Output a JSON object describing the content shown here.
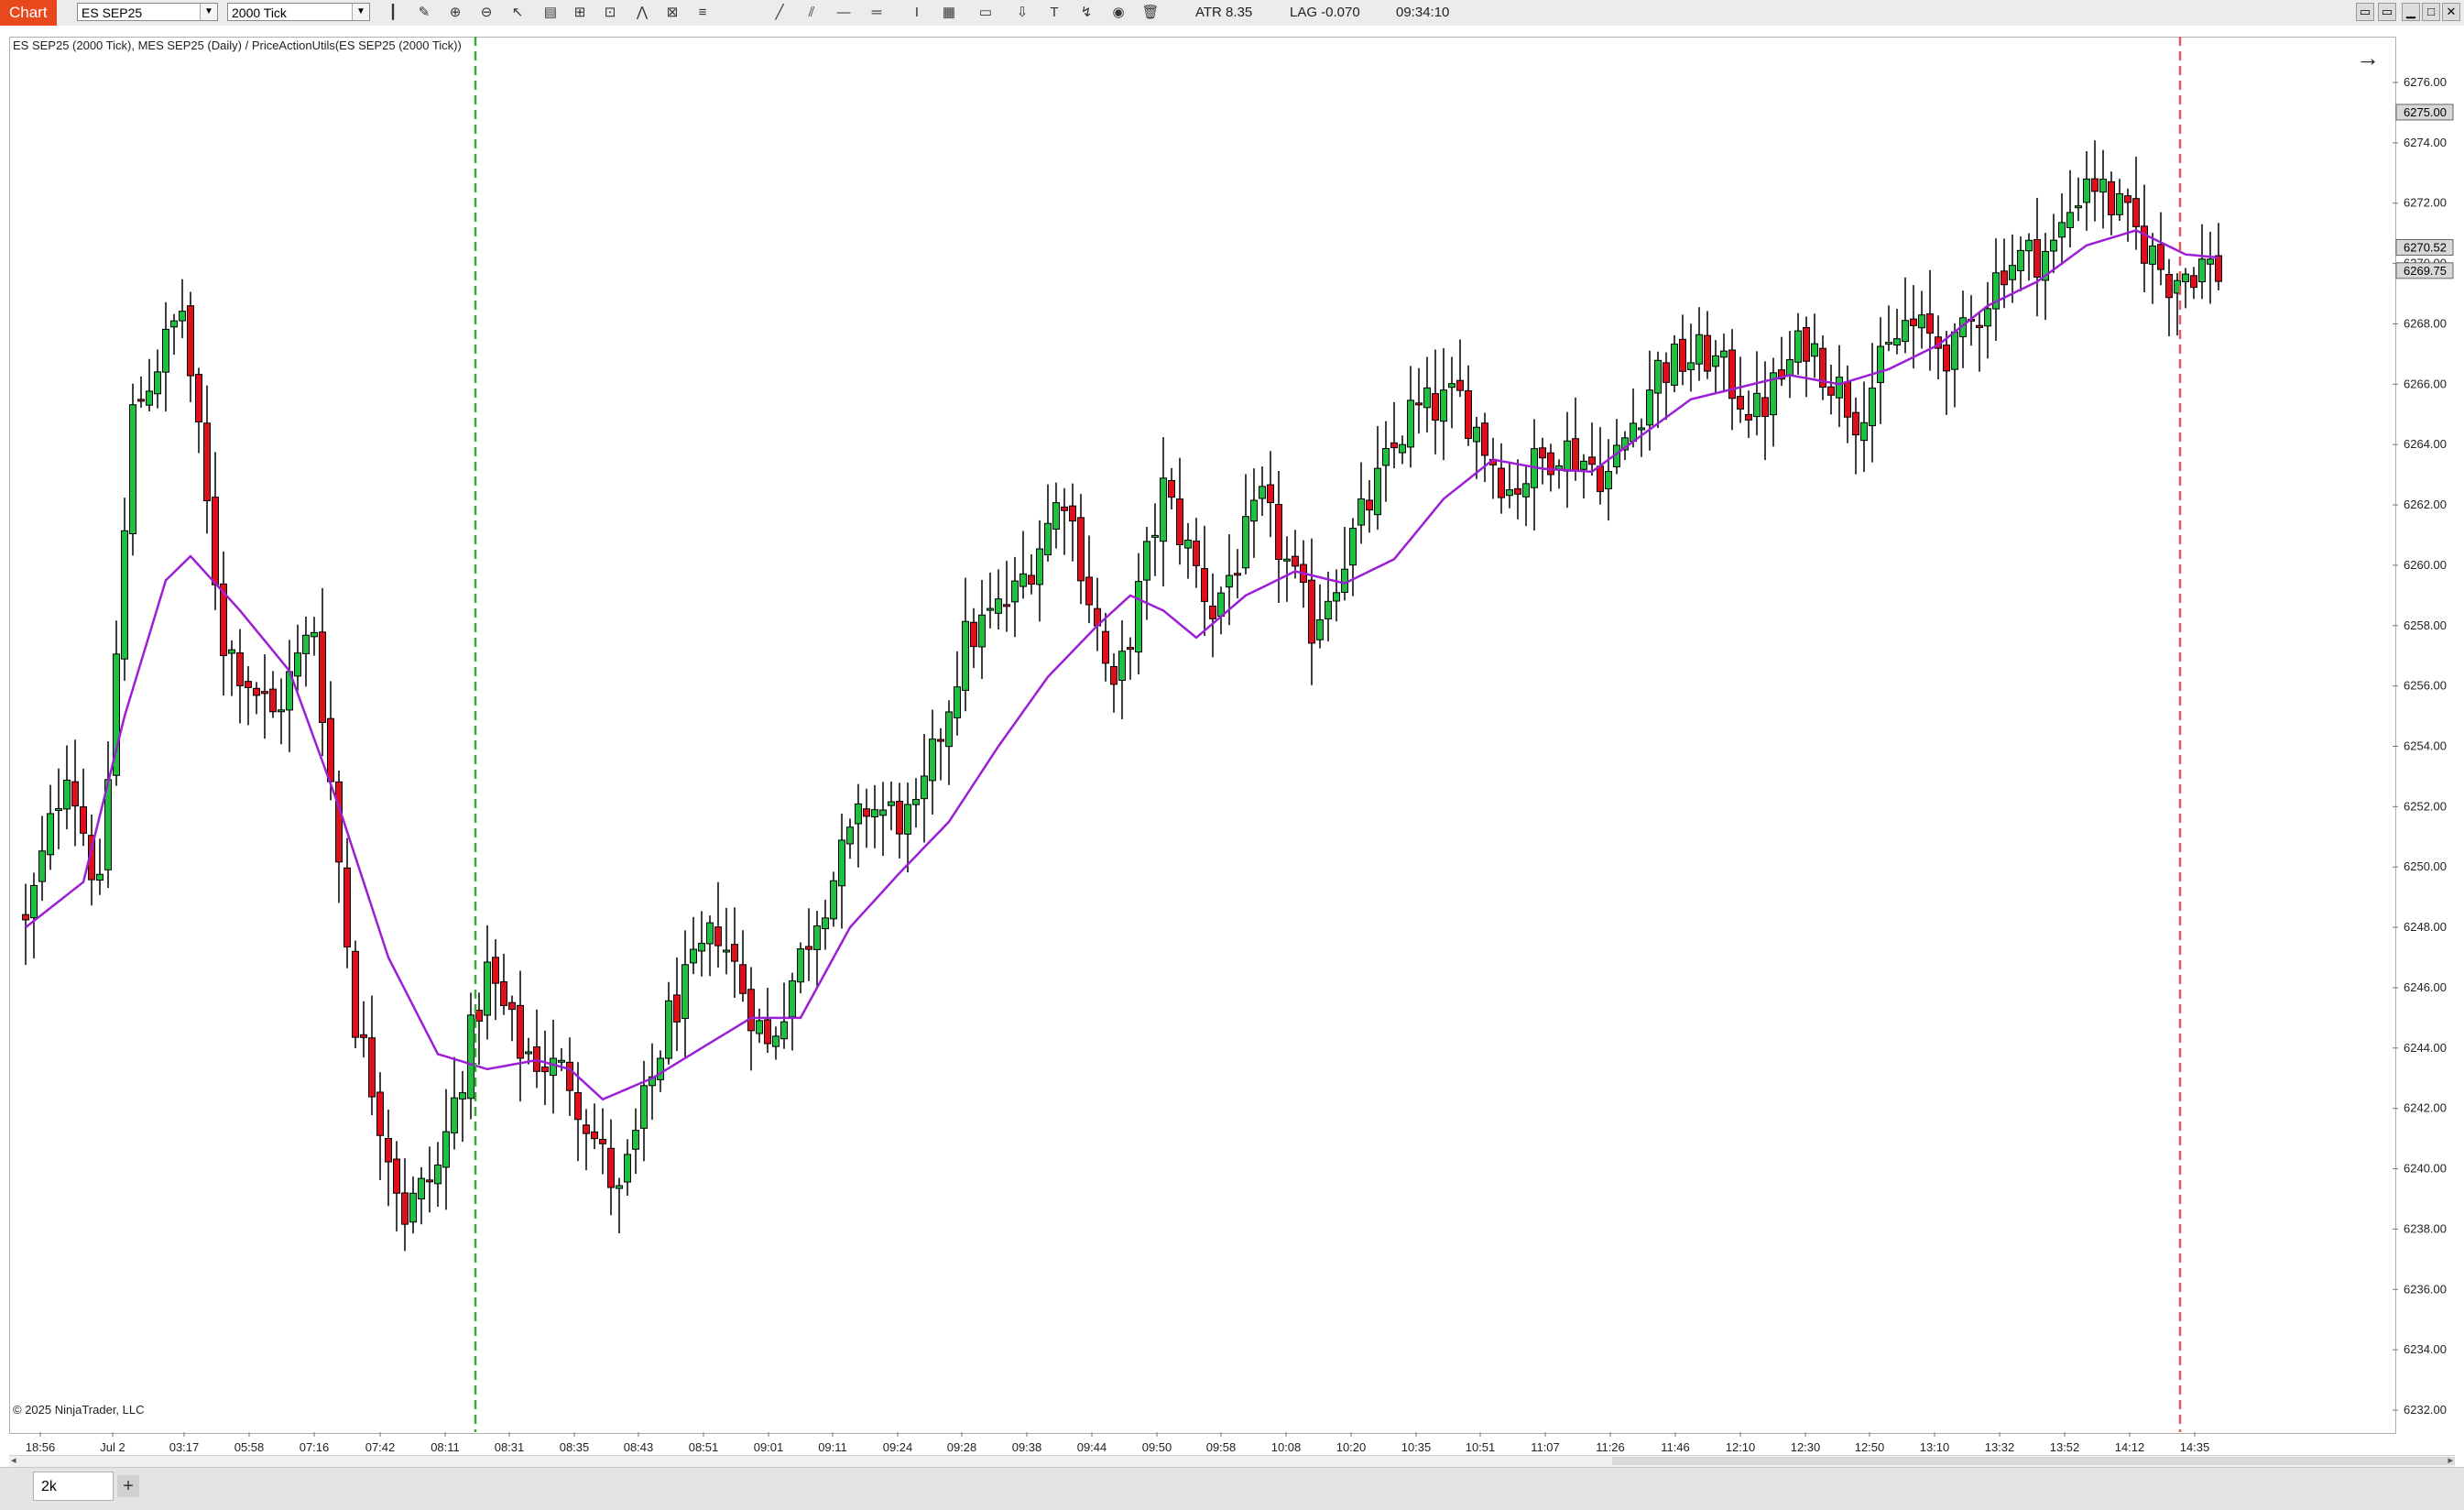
{
  "toolbar": {
    "chart_tab": "Chart",
    "instrument": "ES SEP25",
    "interval": "2000 Tick",
    "atr": "ATR 8.35",
    "lag": "LAG -0.070",
    "time": "09:34:10",
    "tool_icons": [
      "bar-style-icon",
      "pencil-icon",
      "zoom-in-icon",
      "zoom-out-icon",
      "cursor-icon",
      "properties-icon",
      "data-series-icon",
      "indicators-icon",
      "strategies-icon",
      "templates-icon",
      "list-icon",
      "line-icon",
      "ray-icon",
      "horizontal-line-icon",
      "extended-line-icon",
      "text-cursor-icon",
      "ruler-icon",
      "rectangle-icon",
      "arrow-down-icon",
      "text-icon",
      "magnet-icon",
      "eye-icon",
      "trash-icon"
    ]
  },
  "chart": {
    "label": "ES SEP25 (2000 Tick), MES SEP25 (Daily) / PriceActionUtils(ES SEP25 (2000 Tick))",
    "copyright": "© 2025 NinjaTrader, LLC",
    "colors": {
      "up": "#1fbf3f",
      "down": "#e0101a",
      "ma": "#9c1fd6",
      "session_start": "#3aa83a",
      "session_end": "#e85a5a"
    }
  },
  "chart_data": {
    "type": "candlestick",
    "instrument": "ES SEP25",
    "y_ticks": [
      "6276.00",
      "6274.00",
      "6272.00",
      "6270.00",
      "6268.00",
      "6266.00",
      "6264.00",
      "6262.00",
      "6260.00",
      "6258.00",
      "6256.00",
      "6254.00",
      "6252.00",
      "6250.00",
      "6248.00",
      "6246.00",
      "6244.00",
      "6242.00",
      "6240.00",
      "6238.00",
      "6236.00",
      "6234.00",
      "6232.00"
    ],
    "ylim": [
      6232,
      6277
    ],
    "x_ticks": [
      "18:56",
      "Jul 2",
      "03:17",
      "05:58",
      "07:16",
      "07:42",
      "08:11",
      "08:31",
      "08:35",
      "08:43",
      "08:51",
      "09:01",
      "09:11",
      "09:24",
      "09:28",
      "09:38",
      "09:44",
      "09:50",
      "09:58",
      "10:08",
      "10:20",
      "10:35",
      "10:51",
      "11:07",
      "11:26",
      "11:46",
      "12:10",
      "12:30",
      "12:50",
      "13:10",
      "13:32",
      "13:52",
      "14:12",
      "14:35"
    ],
    "price_flags": [
      {
        "label": "6275.00",
        "value": 6275.0
      },
      {
        "label": "6270.52",
        "value": 6270.52
      },
      {
        "label": "6269.75",
        "value": 6269.75
      }
    ],
    "close_anchors": [
      [
        0,
        6248.0
      ],
      [
        5,
        6253.5
      ],
      [
        9,
        6249.0
      ],
      [
        13,
        6265.0
      ],
      [
        19,
        6268.5
      ],
      [
        24,
        6257.5
      ],
      [
        30,
        6255.0
      ],
      [
        35,
        6258.0
      ],
      [
        40,
        6245.0
      ],
      [
        46,
        6238.5
      ],
      [
        50,
        6240.0
      ],
      [
        56,
        6246.5
      ],
      [
        60,
        6244.0
      ],
      [
        66,
        6243.0
      ],
      [
        72,
        6239.0
      ],
      [
        78,
        6245.0
      ],
      [
        84,
        6248.0
      ],
      [
        90,
        6244.0
      ],
      [
        96,
        6248.5
      ],
      [
        102,
        6252.0
      ],
      [
        108,
        6251.5
      ],
      [
        114,
        6257.5
      ],
      [
        120,
        6259.0
      ],
      [
        126,
        6262.5
      ],
      [
        132,
        6255.5
      ],
      [
        138,
        6262.5
      ],
      [
        144,
        6258.5
      ],
      [
        150,
        6262.0
      ],
      [
        156,
        6258.0
      ],
      [
        162,
        6261.5
      ],
      [
        168,
        6265.0
      ],
      [
        174,
        6265.5
      ],
      [
        180,
        6262.5
      ],
      [
        186,
        6264.0
      ],
      [
        192,
        6263.0
      ],
      [
        198,
        6266.5
      ],
      [
        204,
        6267.0
      ],
      [
        210,
        6265.0
      ],
      [
        216,
        6267.5
      ],
      [
        222,
        6265.0
      ],
      [
        228,
        6268.0
      ],
      [
        234,
        6267.0
      ],
      [
        240,
        6270.0
      ],
      [
        246,
        6270.5
      ],
      [
        250,
        6273.0
      ],
      [
        256,
        6271.0
      ],
      [
        260,
        6269.5
      ],
      [
        264,
        6270.0
      ],
      [
        266,
        6269.75
      ]
    ],
    "ma_anchors": [
      [
        0,
        6248.0
      ],
      [
        7,
        6249.5
      ],
      [
        12,
        6255.0
      ],
      [
        17,
        6259.5
      ],
      [
        20,
        6260.3
      ],
      [
        26,
        6258.5
      ],
      [
        32,
        6256.5
      ],
      [
        38,
        6252.0
      ],
      [
        44,
        6247.0
      ],
      [
        50,
        6243.8
      ],
      [
        56,
        6243.3
      ],
      [
        62,
        6243.6
      ],
      [
        66,
        6243.3
      ],
      [
        70,
        6242.3
      ],
      [
        76,
        6243.0
      ],
      [
        82,
        6244.0
      ],
      [
        88,
        6245.0
      ],
      [
        94,
        6245.0
      ],
      [
        100,
        6248.0
      ],
      [
        106,
        6249.8
      ],
      [
        112,
        6251.5
      ],
      [
        118,
        6254.0
      ],
      [
        124,
        6256.3
      ],
      [
        130,
        6258.0
      ],
      [
        134,
        6259.0
      ],
      [
        138,
        6258.5
      ],
      [
        142,
        6257.6
      ],
      [
        148,
        6259.0
      ],
      [
        154,
        6259.8
      ],
      [
        160,
        6259.4
      ],
      [
        166,
        6260.2
      ],
      [
        172,
        6262.2
      ],
      [
        178,
        6263.5
      ],
      [
        184,
        6263.2
      ],
      [
        190,
        6263.1
      ],
      [
        196,
        6264.3
      ],
      [
        202,
        6265.5
      ],
      [
        208,
        6265.9
      ],
      [
        214,
        6266.3
      ],
      [
        220,
        6266.0
      ],
      [
        226,
        6266.5
      ],
      [
        232,
        6267.3
      ],
      [
        238,
        6268.6
      ],
      [
        244,
        6269.4
      ],
      [
        250,
        6270.6
      ],
      [
        256,
        6271.1
      ],
      [
        262,
        6270.3
      ],
      [
        266,
        6270.2
      ]
    ],
    "bar_count": 267,
    "session_lines": {
      "start_index": 55,
      "end_index": 261
    }
  }
}
